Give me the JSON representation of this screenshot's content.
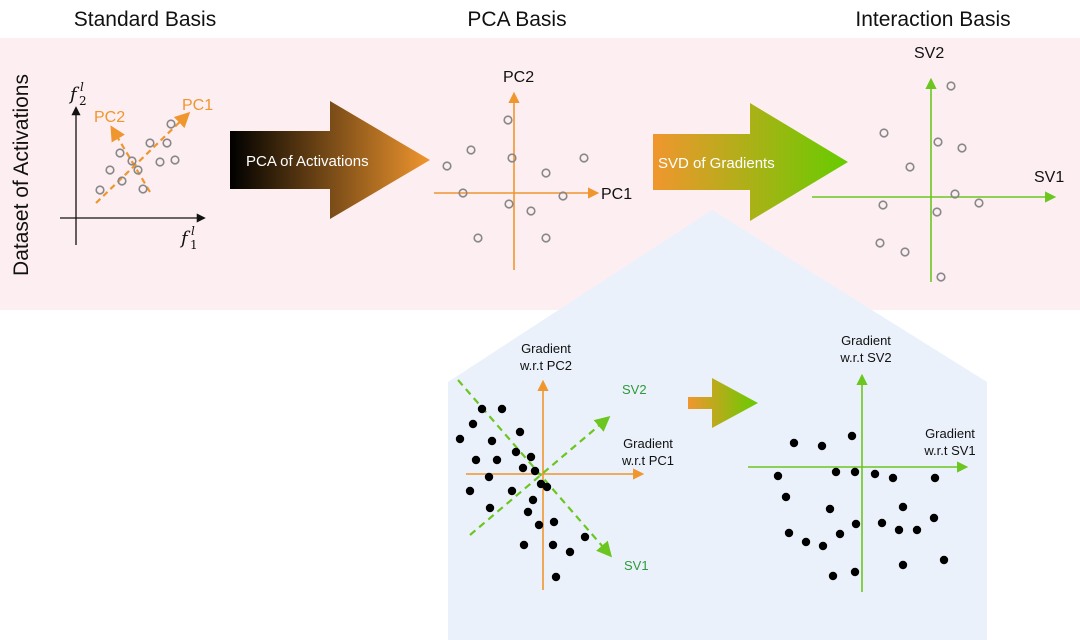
{
  "titles": {
    "standard": "Standard Basis",
    "pca": "PCA Basis",
    "interaction": "Interaction Basis"
  },
  "side_label": "Dataset of Activations",
  "standard_panel": {
    "axis_x": "f",
    "axis_x_sub": "1",
    "axis_y": "f",
    "axis_y_sub": "2",
    "axis_sup": "l",
    "pc1": "PC1",
    "pc2": "PC2"
  },
  "arrow1_label": "PCA of Activations",
  "pca_panel": {
    "pc1": "PC1",
    "pc2": "PC2"
  },
  "arrow2_label": "SVD of Gradients",
  "interaction_panel": {
    "sv1": "SV1",
    "sv2": "SV2"
  },
  "gradient_left": {
    "y_label_line1": "Gradient",
    "y_label_line2": "w.r.t PC2",
    "x_label_line1": "Gradient",
    "x_label_line2": "w.r.t PC1",
    "sv1": "SV1",
    "sv2": "SV2"
  },
  "gradient_right": {
    "y_label_line1": "Gradient",
    "y_label_line2": "w.r.t SV2",
    "x_label_line1": "Gradient",
    "x_label_line2": "w.r.t SV1"
  },
  "colors": {
    "pink_bg": "#fdeef2",
    "blue_bg": "#eaf1fb",
    "orange": "#f0962e",
    "green": "#6cc620",
    "dark_green": "#2e9a3a",
    "point": "#888888"
  }
}
